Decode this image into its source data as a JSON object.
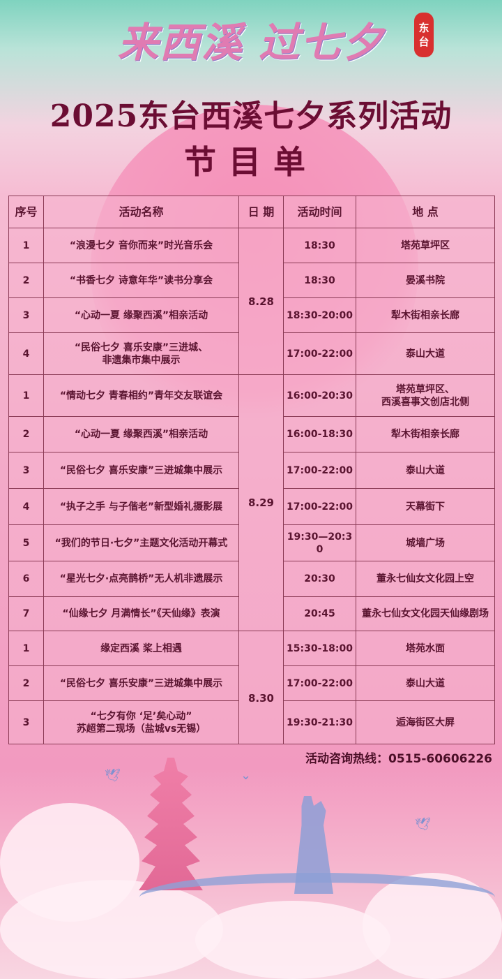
{
  "header": {
    "slogan": "来西溪 过七夕",
    "seal_line1": "东",
    "seal_line2": "台",
    "title": "2025东台西溪七夕系列活动",
    "subtitle": "节目单"
  },
  "table": {
    "columns": [
      "序号",
      "活动名称",
      "日 期",
      "活动时间",
      "地 点"
    ],
    "groups": [
      {
        "date": "8.28",
        "rows": [
          {
            "no": "1",
            "name": "“浪漫七夕 音你而来”时光音乐会",
            "time": "18:30",
            "place": "塔苑草坪区"
          },
          {
            "no": "2",
            "name": "“书香七夕 诗意年华”读书分享会",
            "time": "18:30",
            "place": "晏溪书院"
          },
          {
            "no": "3",
            "name": "“心动一夏 缘聚西溪”相亲活动",
            "time": "18:30-20:00",
            "place": "犁木街相亲长廊"
          },
          {
            "no": "4",
            "name": "“民俗七夕 喜乐安康”三进城、\n非遗集市集中展示",
            "time": "17:00-22:00",
            "place": "泰山大道"
          }
        ]
      },
      {
        "date": "8.29",
        "rows": [
          {
            "no": "1",
            "name": "“情动七夕 青春相约”青年交友联谊会",
            "time": "16:00-20:30",
            "place": "塔苑草坪区、\n西溪喜事文创店北侧"
          },
          {
            "no": "2",
            "name": "“心动一夏 缘聚西溪”相亲活动",
            "time": "16:00-18:30",
            "place": "犁木街相亲长廊"
          },
          {
            "no": "3",
            "name": "“民俗七夕 喜乐安康”三进城集中展示",
            "time": "17:00-22:00",
            "place": "泰山大道"
          },
          {
            "no": "4",
            "name": "“执子之手 与子偕老”新型婚礼摄影展",
            "time": "17:00-22:00",
            "place": "天幕街下"
          },
          {
            "no": "5",
            "name": "“我们的节日·七夕”主题文化活动开幕式",
            "time": "19:30—20:30",
            "place": "城墙广场"
          },
          {
            "no": "6",
            "name": "“星光七夕·点亮鹊桥”无人机非遗展示",
            "time": "20:30",
            "place": "董永七仙女文化园上空"
          },
          {
            "no": "7",
            "name": "“仙缘七夕 月满情长”《天仙缘》表演",
            "time": "20:45",
            "place": "董永七仙女文化园天仙缘剧场"
          }
        ]
      },
      {
        "date": "8.30",
        "rows": [
          {
            "no": "1",
            "name": "缘定西溪 桨上相遇",
            "time": "15:30-18:00",
            "place": "塔苑水面"
          },
          {
            "no": "2",
            "name": "“民俗七夕 喜乐安康”三进城集中展示",
            "time": "17:00-22:00",
            "place": "泰山大道"
          },
          {
            "no": "3",
            "name": "“七夕有你 ‘足’矣心动”\n苏超第二现场（盐城vs无锡）",
            "time": "19:30-21:30",
            "place": "逅海街区大屏"
          }
        ]
      }
    ]
  },
  "hotline": "活动咨询热线：0515-60606226",
  "colors": {
    "title": "#6b0d33",
    "table_border": "#8a3a55",
    "seal": "#d8302f"
  }
}
